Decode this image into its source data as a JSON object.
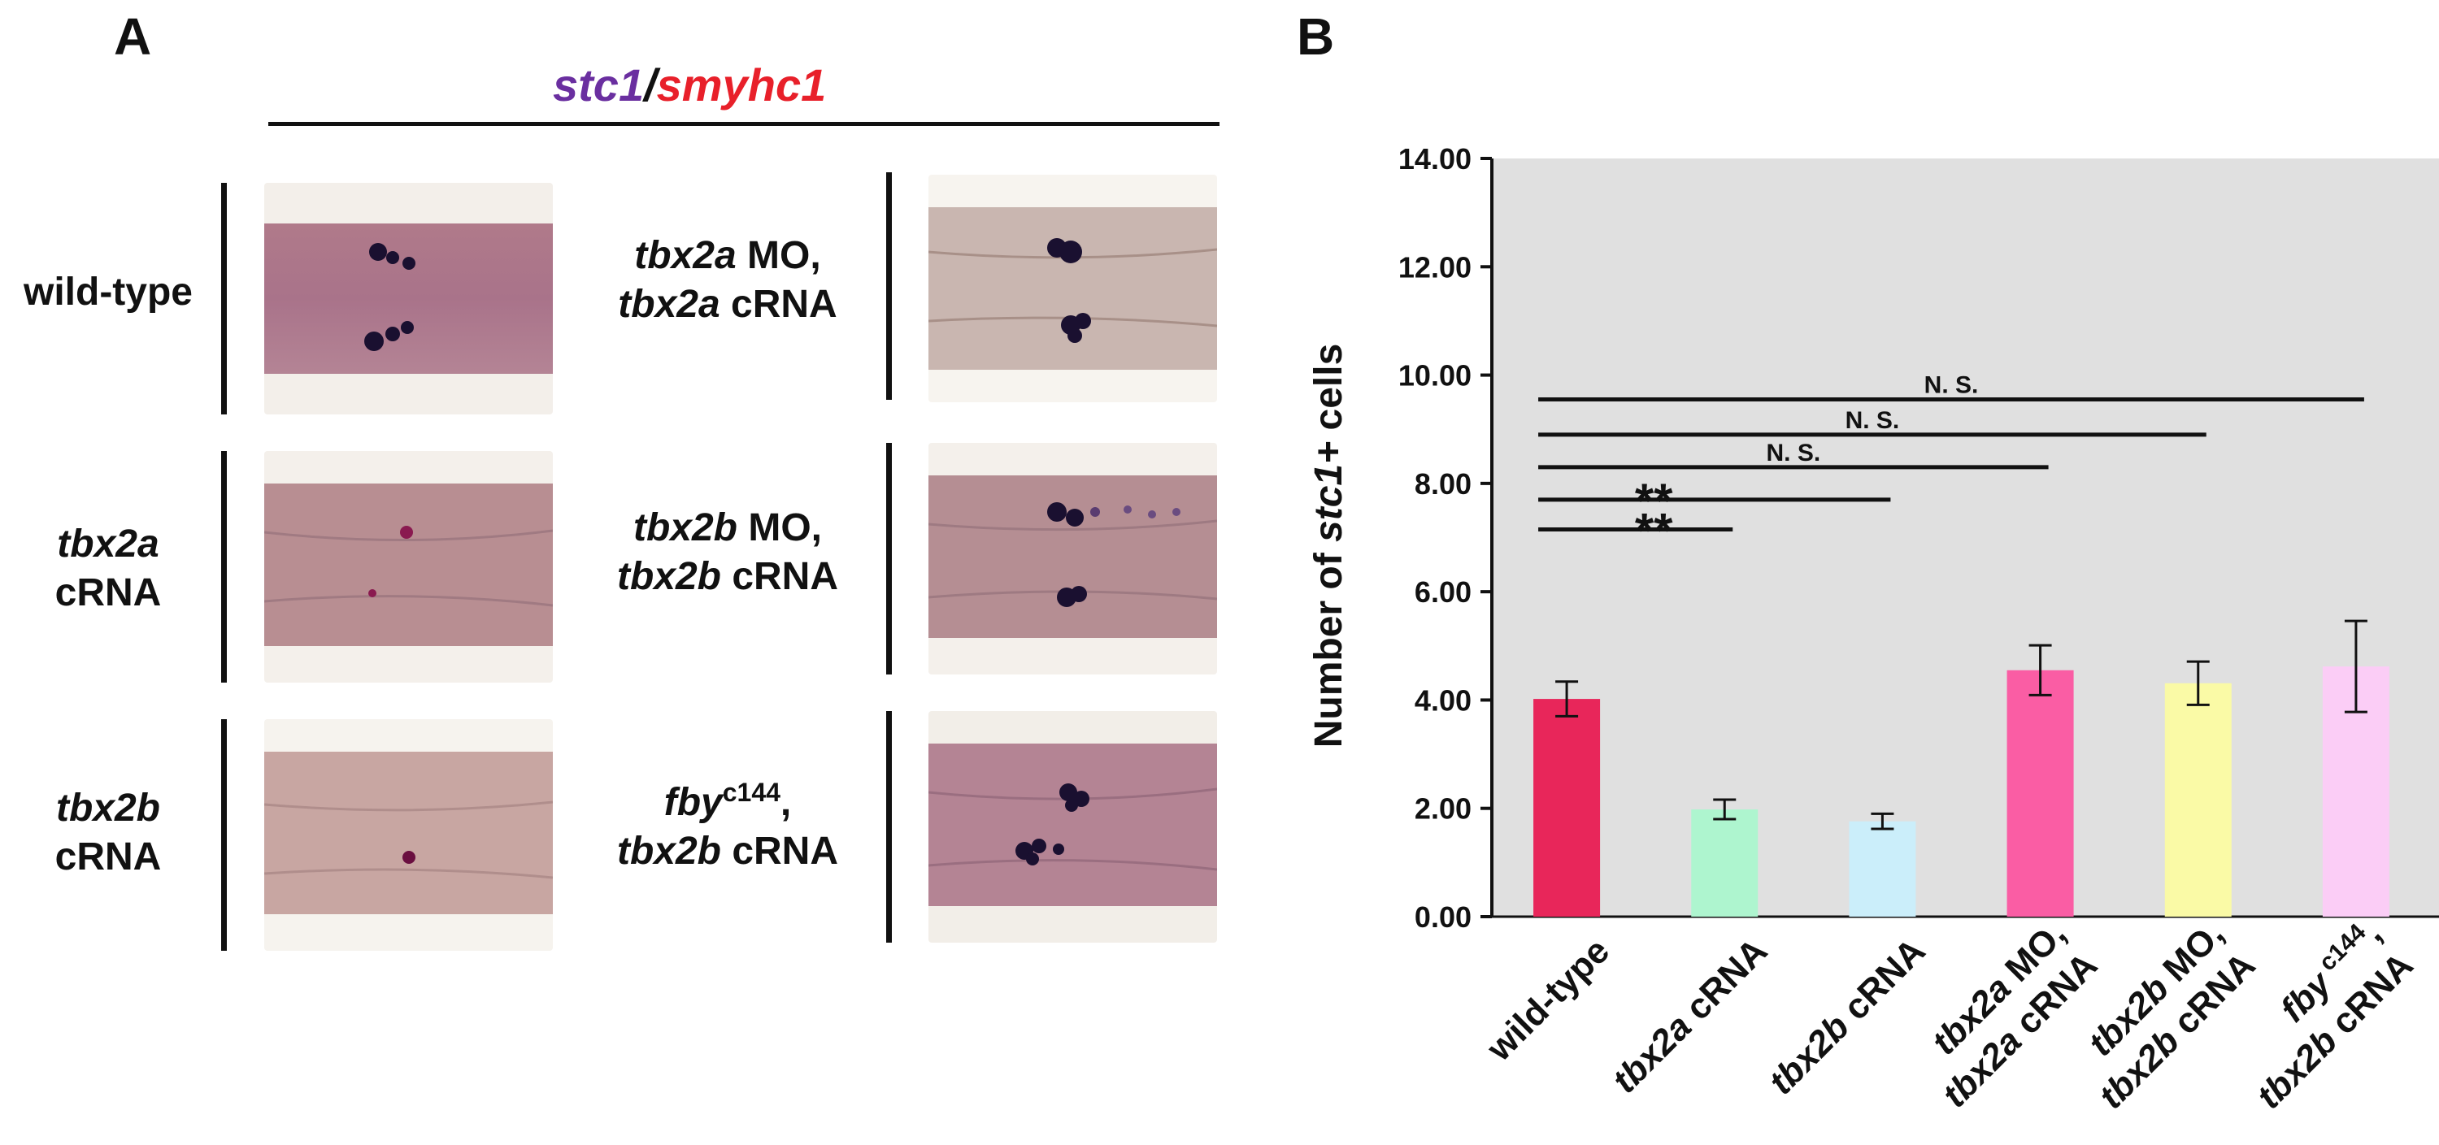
{
  "panel_a": {
    "letter": "A",
    "title": {
      "gene1": "stc1",
      "sep": "/",
      "gene2": "smyhc1",
      "color1": "#6a2fa0",
      "color2": "#e8202a"
    },
    "rows": [
      {
        "left": {
          "line1_it": "",
          "line1": "wild-type",
          "line2_it": "",
          "line2": ""
        },
        "right": {
          "line1_it": "tbx2a",
          "line1": " MO,",
          "line2_it": "tbx2a",
          "line2": " cRNA"
        }
      },
      {
        "left": {
          "line1_it": "tbx2a",
          "line1": "",
          "line2_it": "",
          "line2": "cRNA"
        },
        "right": {
          "line1_it": "tbx2b",
          "line1": " MO,",
          "line2_it": "tbx2b",
          "line2": " cRNA"
        }
      },
      {
        "left": {
          "line1_it": "tbx2b",
          "line1": "",
          "line2_it": "",
          "line2": "cRNA"
        },
        "right": {
          "line1_it": "fby",
          "line1_sup": "c144",
          "line1": ",",
          "line2_it": "tbx2b",
          "line2": " cRNA"
        }
      }
    ]
  },
  "panel_b": {
    "letter": "B"
  },
  "chart_data": {
    "type": "bar",
    "title": "",
    "ylabel": "Number of stc1+ cells",
    "ylabel_parts": {
      "pre": "Number of ",
      "italic": "stc1+",
      "post": " cells"
    },
    "ylim": [
      0,
      14
    ],
    "yticks": [
      "0.00",
      "2.00",
      "4.00",
      "6.00",
      "8.00",
      "10.00",
      "12.00",
      "14.00"
    ],
    "grid": false,
    "plot_background": "#e0e0e0",
    "categories": [
      {
        "line1_it": "",
        "line1": "wild-type",
        "line1_sup": "",
        "line1_tail": "",
        "line2_it": "",
        "line2": ""
      },
      {
        "line1_it": "tbx2a",
        "line1": " cRNA",
        "line1_sup": "",
        "line1_tail": "",
        "line2_it": "",
        "line2": ""
      },
      {
        "line1_it": "tbx2b",
        "line1": " cRNA",
        "line1_sup": "",
        "line1_tail": "",
        "line2_it": "",
        "line2": ""
      },
      {
        "line1_it": "tbx2a",
        "line1": " MO,",
        "line1_sup": "",
        "line1_tail": "",
        "line2_it": "tbx2a",
        "line2": " cRNA"
      },
      {
        "line1_it": "tbx2b",
        "line1": " MO,",
        "line1_sup": "",
        "line1_tail": "",
        "line2_it": "tbx2b",
        "line2": " cRNA"
      },
      {
        "line1_it": "fby",
        "line1": "",
        "line1_sup": "c144",
        "line1_tail": ",",
        "line2_it": "tbx2b",
        "line2": " cRNA"
      }
    ],
    "values": [
      4.02,
      1.98,
      1.76,
      4.55,
      4.31,
      4.62
    ],
    "errors": [
      0.32,
      0.18,
      0.14,
      0.46,
      0.4,
      0.84
    ],
    "colors": [
      "#e8265a",
      "#aef5cf",
      "#cbeefa",
      "#fa5da4",
      "#fafaa6",
      "#fbcdf6"
    ],
    "significance": [
      {
        "label": "**",
        "from": 0,
        "to": 1,
        "y": 7.15
      },
      {
        "label": "**",
        "from": 0,
        "to": 2,
        "y": 7.7
      },
      {
        "label": "N. S.",
        "from": 0,
        "to": 3,
        "y": 8.3
      },
      {
        "label": "N. S.",
        "from": 0,
        "to": 4,
        "y": 8.9
      },
      {
        "label": "N. S.",
        "from": 0,
        "to": 5,
        "y": 9.55
      }
    ]
  }
}
